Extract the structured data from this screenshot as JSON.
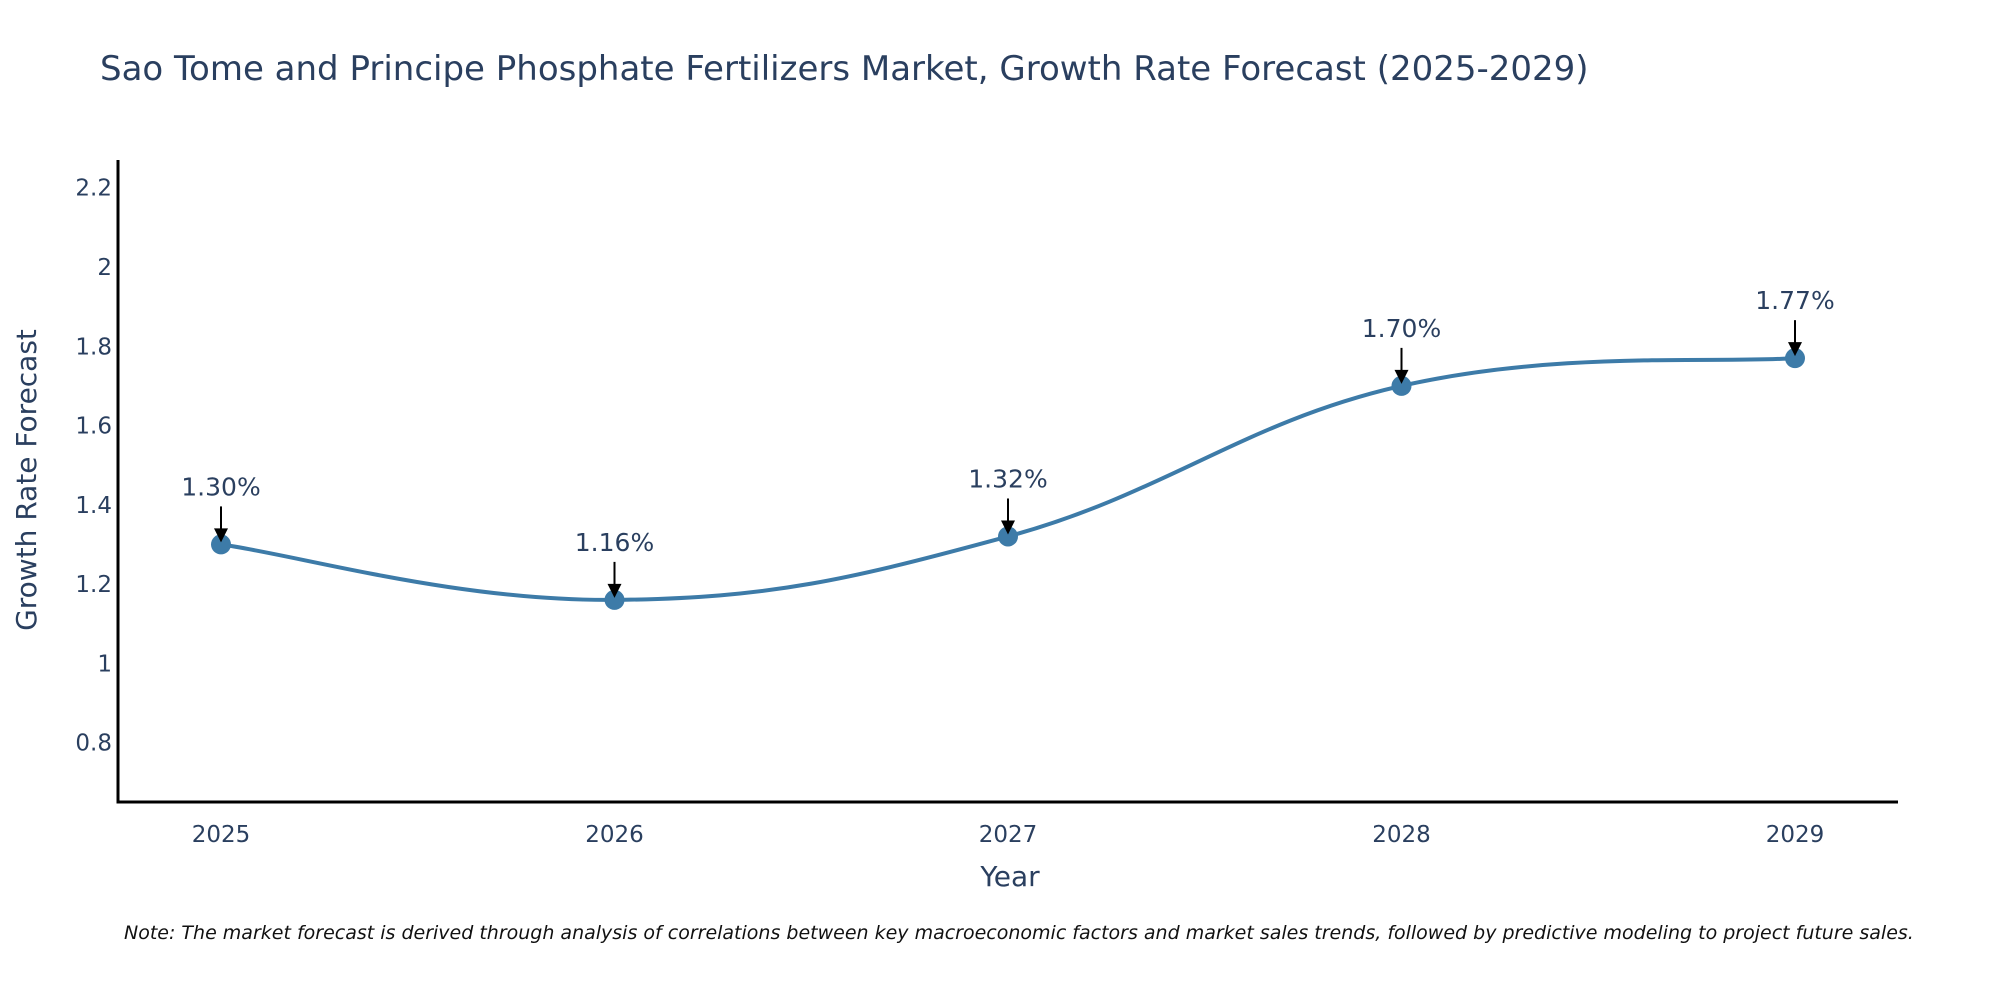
{
  "chart_data": {
    "type": "line",
    "title": "Sao Tome and Principe Phosphate Fertilizers Market, Growth Rate Forecast (2025-2029)",
    "xlabel": "Year",
    "ylabel": "Growth Rate Forecast",
    "x": [
      "2025",
      "2026",
      "2027",
      "2028",
      "2029"
    ],
    "series": [
      {
        "values": [
          1.3,
          1.16,
          1.32,
          1.7,
          1.77
        ]
      }
    ],
    "data_labels": [
      "1.30%",
      "1.16%",
      "1.32%",
      "1.70%",
      "1.77%"
    ],
    "ylim": [
      0.65,
      2.27
    ],
    "yticks": [
      "0.8",
      "1",
      "1.2",
      "1.4",
      "1.6",
      "1.8",
      "2",
      "2.2"
    ],
    "line_shape": "spline",
    "grid": false,
    "legend": false,
    "line_color": "#3d7ba8",
    "marker_color": "#3d7ba8",
    "annotation_arrow_color": "#000000",
    "note": "Note: The market forecast is derived through analysis of correlations between key macroeconomic factors and market sales trends, followed by predictive modeling to project future sales."
  }
}
